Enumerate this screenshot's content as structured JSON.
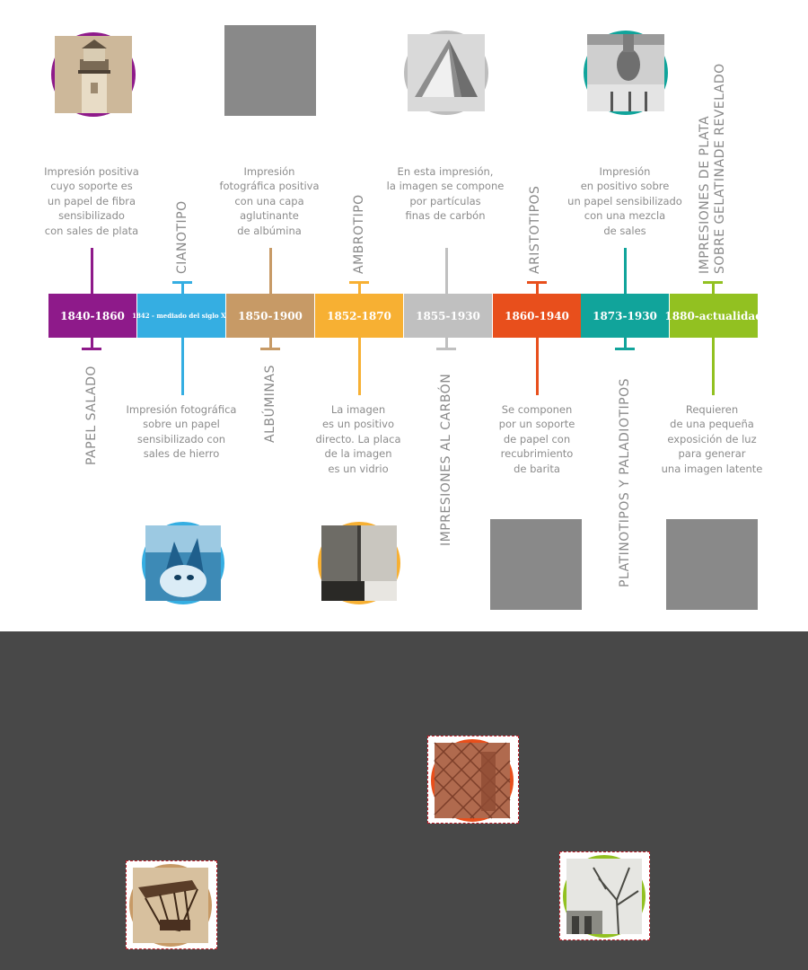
{
  "segments": [
    {
      "label": "1840-1860",
      "color": "#8e1a8a"
    },
    {
      "label": "1842 - mediado del siglo XX",
      "color": "#35aee2"
    },
    {
      "label": "1850-1900",
      "color": "#c79a66"
    },
    {
      "label": "1852-1870",
      "color": "#f7b033"
    },
    {
      "label": "1855-1930",
      "color": "#c0c0c0"
    },
    {
      "label": "1860-1940",
      "color": "#e84f1c"
    },
    {
      "label": "1873-1930",
      "color": "#11a49b"
    },
    {
      "label": "1880-actualidad",
      "color": "#92c121"
    }
  ],
  "titles": {
    "papel_salado": "PAPEL SALADO",
    "cianotipo": "CIANOTIPO",
    "albuminas": "ALBÚMINAS",
    "ambrotipo": "AMBROTIPO",
    "carbon": "IMPRESIONES AL CARBÓN",
    "aristotipos": "ARISTOTIPOS",
    "platinotipos": "PLATINOTIPOS Y PALADIOTIPOS",
    "gelatina_1": "IMPRESIONES DE PLATA",
    "gelatina_2": "SOBRE GELATINADE REVELADO"
  },
  "descriptions": {
    "papel_salado": "Impresión positiva\ncuyo soporte es\nun papel de fibra\nsensibilizado\ncon sales de plata",
    "cianotipo": "Impresión fotográfica\nsobre un papel\nsensibilizado con\nsales de hierro",
    "albuminas": "Impresión\nfotográfica positiva\ncon una capa\naglutinante\nde albúmina",
    "ambrotipo": "La imagen\nes un positivo\ndirecto. La placa\nde la imagen\nes un vidrio",
    "carbon": "En esta impresión,\nla imagen se compone\npor partículas\nfinas de carbón",
    "aristotipos": "Se componen\npor un soporte\nde papel con\nrecubrimiento\nde barita",
    "platinotipos": "Impresión\nen positivo sobre\nun papel sensibilizado\ncon una mezcla\nde sales",
    "gelatina": "Requieren\nde una pequeña\nexposición de luz\npara generar\nuna imagen latente"
  },
  "icons": {
    "lighthouse": "lighthouse-photo-icon",
    "roof": "roof-photo-icon",
    "head": "head-photo-icon",
    "cat": "cat-cyanotype-icon",
    "glass": "glass-plate-icon",
    "textile": "textile-photo-icon",
    "bridge": "bridge-photo-icon",
    "tree": "tree-photo-icon"
  }
}
